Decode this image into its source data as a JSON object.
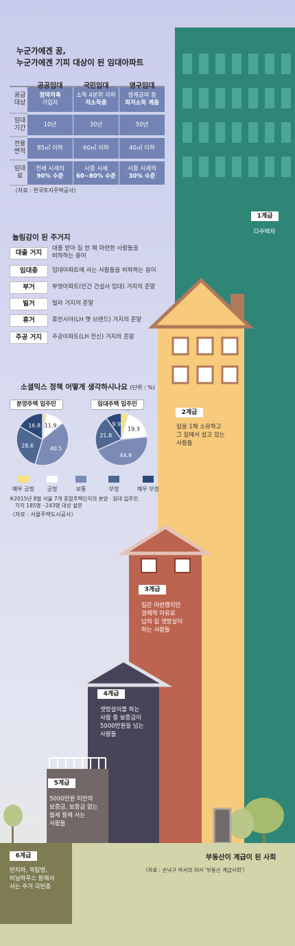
{
  "intro": {
    "title_line1": "누군가에겐 꿈,",
    "title_line2": "누군가에겐 기피 대상이 된 임대아파트",
    "headers": [
      "공공임대",
      "국민임대",
      "영구임대"
    ],
    "rows": [
      {
        "label": "공급\n대상",
        "cells": [
          {
            "line1": "청약저축",
            "line2": "가입자",
            "bold": "line1"
          },
          {
            "line1": "소득 4분위 이하",
            "line2": "저소득층",
            "bold": "line2"
          },
          {
            "line1": "생계급여 등",
            "line2": "최저소득 계층",
            "bold": "line2"
          }
        ]
      },
      {
        "label": "임대\n기간",
        "cells": [
          {
            "line1": "10년",
            "line2": ""
          },
          {
            "line1": "30년",
            "line2": ""
          },
          {
            "line1": "50년",
            "line2": ""
          }
        ]
      },
      {
        "label": "전용\n면적",
        "cells": [
          {
            "line1": "85㎡ 이하",
            "line2": ""
          },
          {
            "line1": "60㎡ 이하",
            "line2": ""
          },
          {
            "line1": "40㎡ 이하",
            "line2": ""
          }
        ]
      },
      {
        "label": "임대\n료",
        "cells": [
          {
            "line1": "전세 시세의",
            "line2": "90% 수준",
            "bold": "line2"
          },
          {
            "line1": "시중 시세",
            "line2": "60~80% 수준",
            "bold": "line2"
          },
          {
            "line1": "시중 시세의",
            "line2": "30% 수준",
            "bold": "line2"
          }
        ]
      }
    ],
    "source": "〈자료 : 한국토지주택공사〉"
  },
  "slang": {
    "title": "놀림감이 된 주거지",
    "items": [
      {
        "tag": "대출 거지",
        "desc1": "대출 받아 집 한 채 마련한 사람들을",
        "desc2": "비하하는 용어"
      },
      {
        "tag": "임대충",
        "desc1": "임대아파트에 사는 사람들을 비하하는 용어",
        "desc2": ""
      },
      {
        "tag": "부거",
        "desc1": "부영아파트(민간 건설사 임대) 거지의 준말",
        "desc2": ""
      },
      {
        "tag": "빌거",
        "desc1": "빌라 거지의 준말",
        "desc2": ""
      },
      {
        "tag": "휴거",
        "desc1": "휴먼시아(LH 옛 브랜드) 거지의 준말",
        "desc2": ""
      },
      {
        "tag": "주공 거지",
        "desc1": "주공아파트(LH 전신) 거지의 준말",
        "desc2": ""
      }
    ]
  },
  "survey": {
    "title": "소셜믹스 정책 어떻게 생각하시나요",
    "unit": "(단위 : %)",
    "note1": "※2015년 8월 서울 7개 혼합주택단지의 분양ㆍ임대 입주민",
    "note2": "각각 185명ㆍ243명 대상 설문",
    "source": "〈자료 : 서울주택도시공사〉"
  },
  "chart_data": {
    "type": "pie",
    "categories": [
      "매우 긍정",
      "긍정",
      "보통",
      "부정",
      "매우 부정"
    ],
    "colors": [
      "#f5e27f",
      "#ffffff",
      "#7b8bb5",
      "#4e6793",
      "#2b4878"
    ],
    "series": [
      {
        "name": "분양주택 입주민",
        "values": [
          2.2,
          11.9,
          40.5,
          28.6,
          16.8
        ]
      },
      {
        "name": "임대주택 입주민",
        "values": [
          4.1,
          19.3,
          44.9,
          21.8,
          9.9
        ]
      }
    ],
    "title": "소셜믹스 정책 어떻게 생각하시나요",
    "legend": "bottom"
  },
  "levels": [
    {
      "name": "1계급",
      "desc": [
        "다주택자"
      ]
    },
    {
      "name": "2계급",
      "desc": [
        "집을 1채 소유하고",
        "그 집에서 살고 있는",
        "사람들"
      ]
    },
    {
      "name": "3계급",
      "desc": [
        "집은 마련했지만",
        "경제적 이유로",
        "남의 집 셋방살이",
        "하는 사람들"
      ]
    },
    {
      "name": "4계급",
      "desc": [
        "셋방살이를 하는",
        "사람 중 보증금이",
        "5000만원을 넘는",
        "사람들"
      ]
    },
    {
      "name": "5계급",
      "desc": [
        "5000만원 미만의",
        "보증금, 보증금 없는",
        "월세 등에 사는",
        "사람들"
      ]
    },
    {
      "name": "6계급",
      "desc": [
        "반지하, 옥탑방,",
        "비닐하우스 등에서",
        "사는 주거 극빈층"
      ]
    }
  ],
  "footer": {
    "title": "부동산이 계급이 된 사회",
    "source": "〈자료 : 손낙구 박사의 저서 '부동산 계급사회'〉"
  },
  "colors": {
    "tower": "#2e8677",
    "yellow_house": "#f7ca7c",
    "red_house": "#bc6450",
    "dark_building": "#474459",
    "gray_building": "#726867",
    "ground": "#d2d5a9",
    "table_cell": "#7283b4"
  }
}
